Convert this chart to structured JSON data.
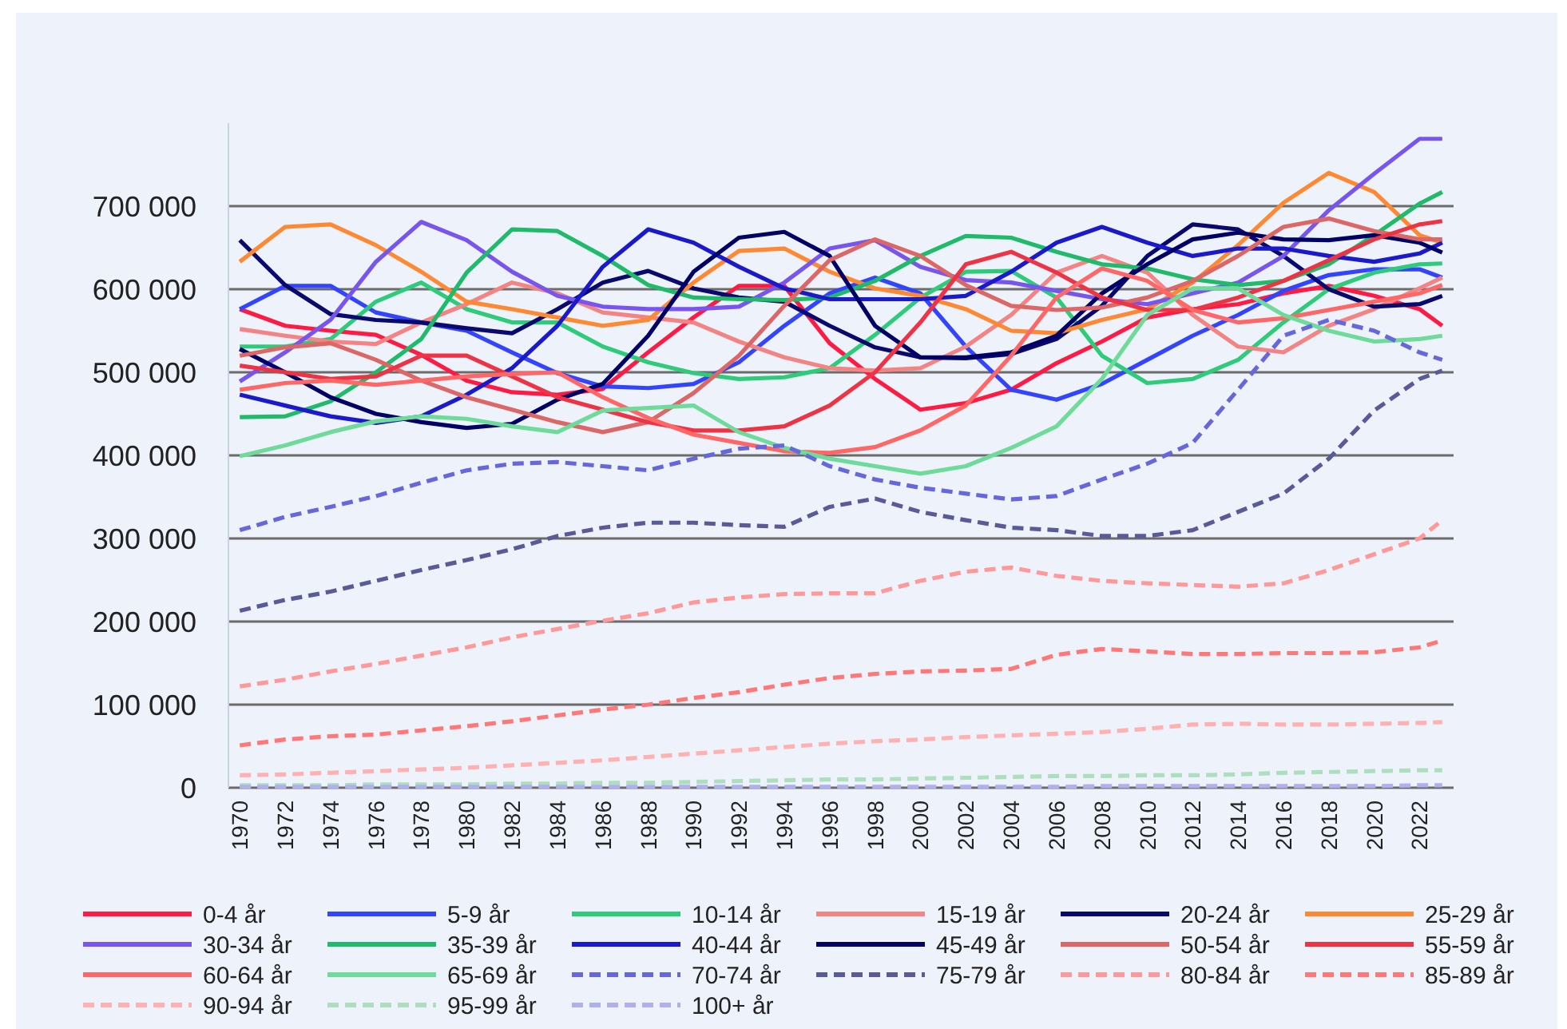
{
  "chart_data": {
    "type": "line",
    "x": [
      1970,
      1972,
      1974,
      1976,
      1978,
      1980,
      1982,
      1984,
      1986,
      1988,
      1990,
      1992,
      1994,
      1996,
      1998,
      2000,
      2002,
      2004,
      2006,
      2008,
      2010,
      2012,
      2014,
      2016,
      2018,
      2020,
      2022,
      2023
    ],
    "xlim": [
      1969.5,
      2023.5
    ],
    "xticks": [
      1970,
      1972,
      1974,
      1976,
      1978,
      1980,
      1982,
      1984,
      1986,
      1988,
      1990,
      1992,
      1994,
      1996,
      1998,
      2000,
      2002,
      2004,
      2006,
      2008,
      2010,
      2012,
      2014,
      2016,
      2018,
      2020,
      2022
    ],
    "ylim": [
      0,
      800000
    ],
    "yticks": [
      0,
      {
        "value": 100000,
        "label": "100 000"
      },
      {
        "value": 200000,
        "label": "200 000"
      },
      {
        "value": 300000,
        "label": "300 000"
      },
      {
        "value": 400000,
        "label": "400 000"
      },
      {
        "value": 500000,
        "label": "500 000"
      },
      {
        "value": 600000,
        "label": "600 000"
      },
      {
        "value": 700000,
        "label": "700 000"
      }
    ],
    "grid": "y",
    "legend": "bottom",
    "line_style": "solid",
    "marker": "none",
    "series": [
      {
        "name": "0-4 år",
        "color": "#ff1a44",
        "values": [
          576000,
          556000,
          550000,
          545000,
          521000,
          490000,
          476000,
          473000,
          480000,
          524000,
          566000,
          604000,
          604000,
          535000,
          492000,
          455000,
          463000,
          479000,
          511000,
          537000,
          566000,
          576000,
          582000,
          595000,
          604000,
          592000,
          576000,
          556000
        ]
      },
      {
        "name": "5-9 år",
        "color": "#3344ff",
        "values": [
          576000,
          604000,
          604000,
          572000,
          560000,
          550000,
          524000,
          499000,
          483000,
          481000,
          486000,
          512000,
          556000,
          595000,
          614000,
          595000,
          531000,
          479000,
          467000,
          486000,
          515000,
          544000,
          569000,
          598000,
          617000,
          624000,
          624000,
          614000
        ]
      },
      {
        "name": "10-14 år",
        "color": "#2ecc7a",
        "values": [
          531000,
          531000,
          540000,
          585000,
          608000,
          576000,
          560000,
          560000,
          531000,
          512000,
          499000,
          492000,
          494000,
          505000,
          545000,
          590000,
          621000,
          622000,
          590000,
          520000,
          487000,
          492000,
          515000,
          560000,
          600000,
          620000,
          630000,
          631000
        ]
      },
      {
        "name": "15-19 år",
        "color": "#f48484",
        "values": [
          552000,
          544000,
          537000,
          534000,
          560000,
          582000,
          608000,
          595000,
          572000,
          566000,
          560000,
          537000,
          518000,
          505000,
          502000,
          505000,
          531000,
          569000,
          620000,
          640000,
          620000,
          569000,
          531000,
          524000,
          556000,
          576000,
          601000,
          614000
        ]
      },
      {
        "name": "20-24 år",
        "color": "#0a0a6e",
        "values": [
          659000,
          605000,
          570000,
          563000,
          560000,
          553000,
          547000,
          576000,
          608000,
          622000,
          601000,
          590000,
          585000,
          556000,
          530000,
          518000,
          517000,
          522000,
          540000,
          580000,
          640000,
          678000,
          672000,
          640000,
          600000,
          579000,
          582000,
          592000
        ]
      },
      {
        "name": "25-29 år",
        "color": "#ff8833",
        "values": [
          633000,
          675000,
          678000,
          653000,
          621000,
          585000,
          576000,
          566000,
          556000,
          563000,
          608000,
          646000,
          649000,
          621000,
          601000,
          592000,
          576000,
          550000,
          547000,
          563000,
          576000,
          608000,
          653000,
          704000,
          740000,
          717000,
          665000,
          656000
        ]
      },
      {
        "name": "30-34 år",
        "color": "#7755ee",
        "values": [
          489000,
          524000,
          563000,
          633000,
          681000,
          659000,
          621000,
          592000,
          579000,
          576000,
          576000,
          579000,
          608000,
          649000,
          659000,
          627000,
          611000,
          608000,
          598000,
          588000,
          582000,
          595000,
          608000,
          640000,
          695000,
          739000,
          781000,
          781000
        ]
      },
      {
        "name": "35-39 år",
        "color": "#1fbb6a",
        "values": [
          446000,
          447000,
          465000,
          500000,
          540000,
          620000,
          672000,
          670000,
          640000,
          605000,
          590000,
          588000,
          587000,
          590000,
          610000,
          640000,
          664000,
          662000,
          645000,
          630000,
          625000,
          612000,
          605000,
          610000,
          630000,
          665000,
          703000,
          717000
        ]
      },
      {
        "name": "40-44 år",
        "color": "#1a1acc",
        "values": [
          473000,
          460000,
          447000,
          439000,
          447000,
          473000,
          505000,
          556000,
          627000,
          672000,
          656000,
          627000,
          601000,
          588000,
          588000,
          588000,
          592000,
          621000,
          656000,
          675000,
          656000,
          640000,
          649000,
          649000,
          640000,
          633000,
          643000,
          656000
        ]
      },
      {
        "name": "45-49 år",
        "color": "#000066",
        "values": [
          528000,
          500000,
          470000,
          450000,
          440000,
          433000,
          438000,
          467000,
          486000,
          544000,
          621000,
          662000,
          669000,
          640000,
          556000,
          518000,
          518000,
          524000,
          544000,
          595000,
          630000,
          660000,
          668000,
          660000,
          659000,
          665000,
          656000,
          644000
        ]
      },
      {
        "name": "50-54 år",
        "color": "#dd6666",
        "values": [
          520000,
          530000,
          535000,
          515000,
          490000,
          470000,
          455000,
          440000,
          428000,
          440000,
          475000,
          520000,
          580000,
          635000,
          660000,
          640000,
          605000,
          580000,
          575000,
          578000,
          590000,
          610000,
          640000,
          675000,
          685000,
          670000,
          660000,
          660000
        ]
      },
      {
        "name": "55-59 år",
        "color": "#ee3344",
        "values": [
          508000,
          500000,
          492000,
          495000,
          520000,
          520000,
          495000,
          470000,
          455000,
          440000,
          430000,
          430000,
          435000,
          460000,
          500000,
          560000,
          630000,
          645000,
          620000,
          590000,
          575000,
          575000,
          590000,
          610000,
          635000,
          660000,
          678000,
          682000
        ]
      },
      {
        "name": "60-64 år",
        "color": "#ff6666",
        "values": [
          479000,
          487000,
          490000,
          485000,
          490000,
          495000,
          498000,
          500000,
          470000,
          445000,
          425000,
          415000,
          405000,
          403000,
          410000,
          430000,
          460000,
          520000,
          590000,
          625000,
          610000,
          575000,
          560000,
          565000,
          575000,
          585000,
          595000,
          605000
        ]
      },
      {
        "name": "65-69 år",
        "color": "#6fdb9a",
        "values": [
          399000,
          412000,
          428000,
          441000,
          447000,
          444000,
          435000,
          428000,
          454000,
          457000,
          460000,
          428000,
          409000,
          396000,
          387000,
          378000,
          387000,
          409000,
          435000,
          492000,
          569000,
          601000,
          601000,
          569000,
          550000,
          537000,
          540000,
          544000
        ]
      },
      {
        "name": "70-74 år",
        "color": "#6666dd",
        "line_style": "dashed",
        "values": [
          310000,
          326000,
          338000,
          351000,
          367000,
          382000,
          390000,
          392000,
          387000,
          382000,
          396000,
          408000,
          412000,
          387000,
          371000,
          361000,
          354000,
          347000,
          351000,
          371000,
          390000,
          415000,
          479000,
          544000,
          563000,
          550000,
          524000,
          515000
        ]
      },
      {
        "name": "75-79 år",
        "color": "#5a5a99",
        "line_style": "dashed",
        "values": [
          213000,
          226000,
          236000,
          249000,
          262000,
          274000,
          287000,
          303000,
          313000,
          319000,
          319000,
          316000,
          314000,
          338000,
          348000,
          332000,
          322000,
          313000,
          310000,
          303000,
          303000,
          310000,
          332000,
          354000,
          396000,
          454000,
          492000,
          502000
        ]
      },
      {
        "name": "80-84 år",
        "color": "#ff9999",
        "line_style": "dashed",
        "values": [
          122000,
          130000,
          140000,
          149000,
          159000,
          169000,
          181000,
          191000,
          201000,
          210000,
          223000,
          229000,
          233000,
          234000,
          234000,
          249000,
          260000,
          265000,
          255000,
          249000,
          246000,
          244000,
          242000,
          246000,
          262000,
          281000,
          300000,
          322000
        ]
      },
      {
        "name": "85-89 år",
        "color": "#ff7777",
        "line_style": "dashed",
        "values": [
          51000,
          58000,
          62000,
          64000,
          69000,
          74000,
          80000,
          87000,
          94000,
          100000,
          108000,
          115000,
          124000,
          132000,
          137000,
          140000,
          141000,
          143000,
          160000,
          167000,
          164000,
          161000,
          161000,
          162000,
          162000,
          163000,
          169000,
          177000
        ]
      },
      {
        "name": "90-94 år",
        "color": "#ffb0b0",
        "line_style": "dashed",
        "values": [
          15000,
          16000,
          18000,
          20000,
          22000,
          24000,
          27000,
          30000,
          33000,
          37000,
          41000,
          45000,
          49000,
          53000,
          56000,
          58000,
          61000,
          63000,
          65000,
          67000,
          71000,
          76000,
          77000,
          76000,
          76000,
          77000,
          78000,
          79000
        ]
      },
      {
        "name": "95-99 år",
        "color": "#addfbf",
        "line_style": "dashed",
        "values": [
          3000,
          3000,
          3000,
          4000,
          4000,
          4000,
          5000,
          5000,
          6000,
          6000,
          7000,
          8000,
          9000,
          10000,
          10000,
          11000,
          12000,
          13000,
          14000,
          14000,
          15000,
          15000,
          16000,
          18000,
          19000,
          20000,
          21000,
          21000
        ]
      },
      {
        "name": "100+ år",
        "color": "#b0b0ee",
        "line_style": "dashed",
        "values": [
          1000,
          1000,
          1000,
          1000,
          1000,
          1000,
          1000,
          1000,
          1000,
          1000,
          1000,
          1000,
          1000,
          1000,
          1000,
          1000,
          1000,
          1000,
          1000,
          2000,
          2000,
          2000,
          2000,
          2000,
          2000,
          2000,
          3000,
          3000
        ]
      }
    ]
  }
}
